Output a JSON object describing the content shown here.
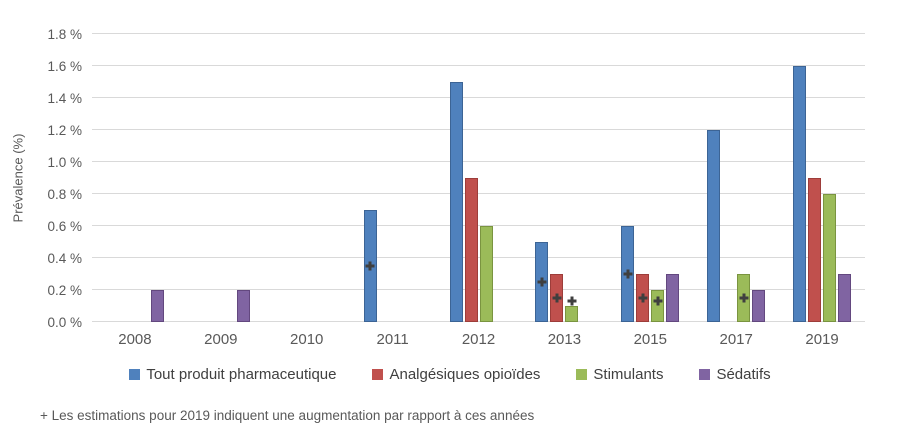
{
  "footnote": "+ Les estimations pour 2019 indiquent une augmentation par rapport à ces années",
  "chart_data": {
    "type": "bar",
    "title": "",
    "xlabel": "",
    "ylabel": "Prévalence (%)",
    "ylim": [
      0,
      1.8
    ],
    "ytick_step": 0.2,
    "ytick_labels": [
      "0.0 %",
      "0.2 %",
      "0.4 %",
      "0.6 %",
      "0.8 %",
      "1.0 %",
      "1.2 %",
      "1.4 %",
      "1.6 %",
      "1.8 %"
    ],
    "grid": "horizontal",
    "gridline_color": "#d9d9d9",
    "legend_position": "bottom",
    "marker_glyph": "+",
    "marker_meaning": "augmentation en 2019 par rapport à cette année",
    "categories": [
      "2008",
      "2009",
      "2010",
      "2011",
      "2012",
      "2013",
      "2015",
      "2017",
      "2019"
    ],
    "series": [
      {
        "key": "tout-produit-pharmaceutique",
        "name": "Tout produit pharmaceutique",
        "color": "#4f81bd",
        "border": "#3c6495",
        "values": [
          null,
          null,
          null,
          0.7,
          1.5,
          0.5,
          0.6,
          1.2,
          1.6
        ]
      },
      {
        "key": "analgesiques-opioides",
        "name": "Analgésiques opioïdes",
        "color": "#c0504d",
        "border": "#9d3d3a",
        "values": [
          null,
          null,
          null,
          null,
          0.9,
          0.3,
          0.3,
          null,
          0.9
        ]
      },
      {
        "key": "stimulants",
        "name": "Stimulants",
        "color": "#9bbb59",
        "border": "#7a9440",
        "values": [
          null,
          null,
          null,
          null,
          0.6,
          0.1,
          0.2,
          0.3,
          0.8
        ]
      },
      {
        "key": "sedatifs",
        "name": "Sédatifs",
        "color": "#8064a2",
        "border": "#63487f",
        "values": [
          0.2,
          0.2,
          null,
          null,
          null,
          null,
          0.3,
          0.2,
          0.3
        ]
      }
    ],
    "markers": [
      {
        "category": "2011",
        "series": 0,
        "y": 0.35
      },
      {
        "category": "2013",
        "series": 0,
        "y": 0.25
      },
      {
        "category": "2013",
        "series": 1,
        "y": 0.15
      },
      {
        "category": "2013",
        "series": 2,
        "y": 0.13
      },
      {
        "category": "2015",
        "series": 0,
        "y": 0.3
      },
      {
        "category": "2015",
        "series": 1,
        "y": 0.15
      },
      {
        "category": "2015",
        "series": 2,
        "y": 0.13
      },
      {
        "category": "2017",
        "series": 2,
        "y": 0.15
      }
    ]
  }
}
